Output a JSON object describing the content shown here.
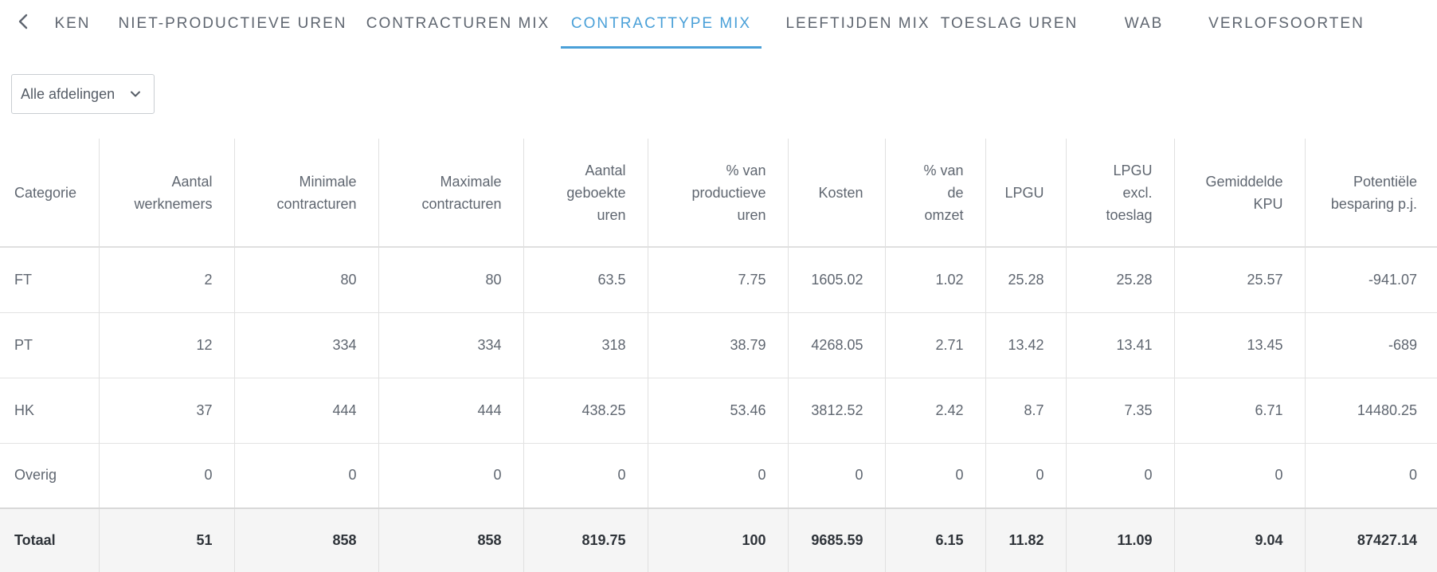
{
  "tabs": [
    {
      "label": "KEN",
      "active": false
    },
    {
      "label": "NIET-PRODUCTIEVE UREN",
      "active": false
    },
    {
      "label": "CONTRACTUREN MIX",
      "active": false
    },
    {
      "label": "CONTRACTTYPE MIX",
      "active": true
    },
    {
      "label": "LEEFTIJDEN MIX",
      "active": false
    },
    {
      "label": "TOESLAG UREN",
      "active": false
    },
    {
      "label": "WAB",
      "active": false
    },
    {
      "label": "VERLOFSOORTEN",
      "active": false
    }
  ],
  "accent_color": "#4aa0d8",
  "filter": {
    "selected": "Alle afdelingen"
  },
  "table": {
    "headers": [
      [
        "Categorie"
      ],
      [
        "Aantal",
        "werknemers"
      ],
      [
        "Minimale",
        "contracturen"
      ],
      [
        "Maximale",
        "contracturen"
      ],
      [
        "Aantal",
        "geboekte",
        "uren"
      ],
      [
        "% van",
        "productieve",
        "uren"
      ],
      [
        "Kosten"
      ],
      [
        "% van",
        "de",
        "omzet"
      ],
      [
        "LPGU"
      ],
      [
        "LPGU",
        "excl.",
        "toeslag"
      ],
      [
        "Gemiddelde",
        "KPU"
      ],
      [
        "Potentiële",
        "besparing p.j."
      ]
    ],
    "rows": [
      [
        "FT",
        "2",
        "80",
        "80",
        "63.5",
        "7.75",
        "1605.02",
        "1.02",
        "25.28",
        "25.28",
        "25.57",
        "-941.07"
      ],
      [
        "PT",
        "12",
        "334",
        "334",
        "318",
        "38.79",
        "4268.05",
        "2.71",
        "13.42",
        "13.41",
        "13.45",
        "-689"
      ],
      [
        "HK",
        "37",
        "444",
        "444",
        "438.25",
        "53.46",
        "3812.52",
        "2.42",
        "8.7",
        "7.35",
        "6.71",
        "14480.25"
      ],
      [
        "Overig",
        "0",
        "0",
        "0",
        "0",
        "0",
        "0",
        "0",
        "0",
        "0",
        "0",
        "0"
      ]
    ],
    "total": [
      "Totaal",
      "51",
      "858",
      "858",
      "819.75",
      "100",
      "9685.59",
      "6.15",
      "11.82",
      "11.09",
      "9.04",
      "87427.14"
    ]
  }
}
